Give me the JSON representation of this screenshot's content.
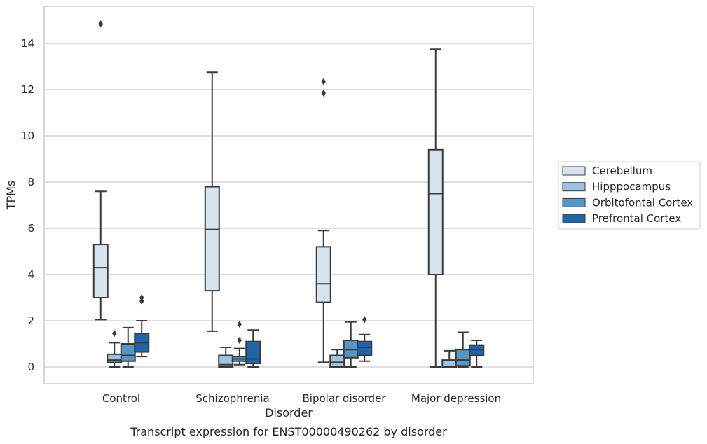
{
  "chart_data": {
    "type": "box",
    "xlabel": "Disorder",
    "ylabel": "TPMs",
    "caption": "Transcript expression for ENST00000490262 by disorder",
    "ylim": [
      -0.7,
      15.4
    ],
    "yticks": [
      0,
      2,
      4,
      6,
      8,
      10,
      12,
      14
    ],
    "grid": "horizontal",
    "legend_position": "right, outside plot",
    "categories": [
      "Control",
      "Schizophrenia",
      "Bipolar disorder",
      "Major depression"
    ],
    "series": [
      {
        "name": "Cerebellum",
        "color": "#d6e4f2",
        "boxes": [
          {
            "whislo": 2.05,
            "q1": 3.0,
            "med": 4.3,
            "q3": 5.3,
            "whishi": 7.6,
            "fliers": [
              14.85
            ]
          },
          {
            "whislo": 1.55,
            "q1": 3.3,
            "med": 5.95,
            "q3": 7.8,
            "whishi": 12.75,
            "fliers": []
          },
          {
            "whislo": 0.2,
            "q1": 2.8,
            "med": 3.6,
            "q3": 5.2,
            "whishi": 5.9,
            "fliers": [
              11.85,
              12.35
            ]
          },
          {
            "whislo": 0.0,
            "q1": 4.0,
            "med": 7.5,
            "q3": 9.4,
            "whishi": 13.75,
            "fliers": []
          }
        ]
      },
      {
        "name": "Hipppocampus",
        "color": "#9cc4e0",
        "boxes": [
          {
            "whislo": 0.0,
            "q1": 0.2,
            "med": 0.3,
            "q3": 0.55,
            "whishi": 1.05,
            "fliers": [
              1.45
            ]
          },
          {
            "whislo": 0.0,
            "q1": 0.0,
            "med": 0.1,
            "q3": 0.5,
            "whishi": 0.85,
            "fliers": []
          },
          {
            "whislo": 0.0,
            "q1": 0.0,
            "med": 0.2,
            "q3": 0.5,
            "whishi": 0.75,
            "fliers": []
          },
          {
            "whislo": 0.0,
            "q1": 0.0,
            "med": 0.0,
            "q3": 0.3,
            "whishi": 0.7,
            "fliers": []
          }
        ]
      },
      {
        "name": "Orbitofontal Cortex",
        "color": "#5596c6",
        "boxes": [
          {
            "whislo": 0.0,
            "q1": 0.25,
            "med": 0.5,
            "q3": 1.0,
            "whishi": 1.7,
            "fliers": []
          },
          {
            "whislo": 0.1,
            "q1": 0.25,
            "med": 0.35,
            "q3": 0.45,
            "whishi": 0.8,
            "fliers": [
              1.15,
              1.85
            ]
          },
          {
            "whislo": 0.0,
            "q1": 0.4,
            "med": 0.75,
            "q3": 1.15,
            "whishi": 1.95,
            "fliers": []
          },
          {
            "whislo": 0.0,
            "q1": 0.05,
            "med": 0.3,
            "q3": 0.75,
            "whishi": 1.5,
            "fliers": []
          }
        ]
      },
      {
        "name": "Prefrontal Cortex",
        "color": "#2264a8",
        "boxes": [
          {
            "whislo": 0.45,
            "q1": 0.65,
            "med": 1.05,
            "q3": 1.45,
            "whishi": 2.0,
            "fliers": [
              2.85,
              3.0
            ]
          },
          {
            "whislo": 0.0,
            "q1": 0.15,
            "med": 0.35,
            "q3": 1.1,
            "whishi": 1.6,
            "fliers": []
          },
          {
            "whislo": 0.25,
            "q1": 0.5,
            "med": 0.85,
            "q3": 1.1,
            "whishi": 1.4,
            "fliers": [
              2.05
            ]
          },
          {
            "whislo": 0.0,
            "q1": 0.5,
            "med": 0.75,
            "q3": 0.95,
            "whishi": 1.15,
            "fliers": []
          }
        ]
      }
    ]
  }
}
